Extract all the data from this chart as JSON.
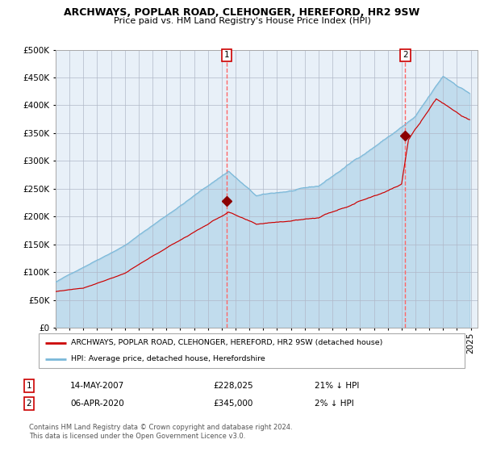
{
  "title": "ARCHWAYS, POPLAR ROAD, CLEHONGER, HEREFORD, HR2 9SW",
  "subtitle": "Price paid vs. HM Land Registry's House Price Index (HPI)",
  "legend_line1": "ARCHWAYS, POPLAR ROAD, CLEHONGER, HEREFORD, HR2 9SW (detached house)",
  "legend_line2": "HPI: Average price, detached house, Herefordshire",
  "annotation1_label": "1",
  "annotation1_date": "14-MAY-2007",
  "annotation1_price": "£228,025",
  "annotation1_pct": "21% ↓ HPI",
  "annotation2_label": "2",
  "annotation2_date": "06-APR-2020",
  "annotation2_price": "£345,000",
  "annotation2_pct": "2% ↓ HPI",
  "footnote": "Contains HM Land Registry data © Crown copyright and database right 2024.\nThis data is licensed under the Open Government Licence v3.0.",
  "hpi_color": "#7ab8d9",
  "price_color": "#cc0000",
  "marker_color": "#8b0000",
  "vline_color": "#ff6666",
  "plot_bg": "#e8f0f8",
  "ylim": [
    0,
    500000
  ],
  "yticks": [
    0,
    50000,
    100000,
    150000,
    200000,
    250000,
    300000,
    350000,
    400000,
    450000,
    500000
  ],
  "marker1_x": 2007.37,
  "marker1_y": 228025,
  "marker2_x": 2020.26,
  "marker2_y": 345000,
  "xmin": 1995,
  "xmax": 2025.5
}
